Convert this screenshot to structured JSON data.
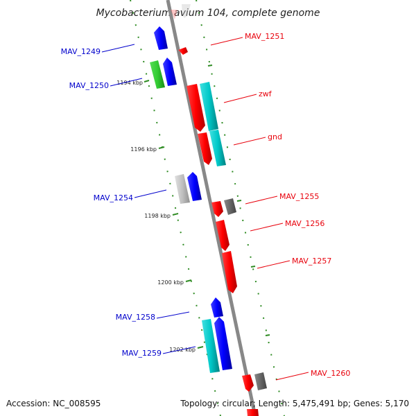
{
  "title": "Mycobacterium avium 104, complete genome",
  "footer": {
    "accession": "Accession: NC_008595",
    "stats": "Topology: circular; Length: 5,475,491 bp; Genes: 5,170"
  },
  "colors": {
    "forward_label": "#e8000b",
    "reverse_label": "#0000cc",
    "backbone": "#888888",
    "tick": "#2e8b22",
    "red": "#ff0000",
    "blue": "#0000ff",
    "cyan": "#00c8c8",
    "green": "#33cc33",
    "gray": "#666666",
    "light_gray": "#c0c0c0"
  },
  "ticks": [
    "1194 kbp",
    "1196 kbp",
    "1198 kbp",
    "1200 kbp",
    "1202 kbp"
  ],
  "genes": [
    {
      "label": "MAV_1249",
      "strand": "reverse"
    },
    {
      "label": "MAV_1250",
      "strand": "reverse"
    },
    {
      "label": "MAV_1251",
      "strand": "forward"
    },
    {
      "label": "zwf",
      "strand": "forward"
    },
    {
      "label": "gnd",
      "strand": "forward"
    },
    {
      "label": "MAV_1254",
      "strand": "reverse"
    },
    {
      "label": "MAV_1255",
      "strand": "forward"
    },
    {
      "label": "MAV_1256",
      "strand": "forward"
    },
    {
      "label": "MAV_1257",
      "strand": "forward"
    },
    {
      "label": "MAV_1258",
      "strand": "reverse"
    },
    {
      "label": "MAV_1259",
      "strand": "reverse"
    },
    {
      "label": "MAV_1260",
      "strand": "forward"
    }
  ]
}
